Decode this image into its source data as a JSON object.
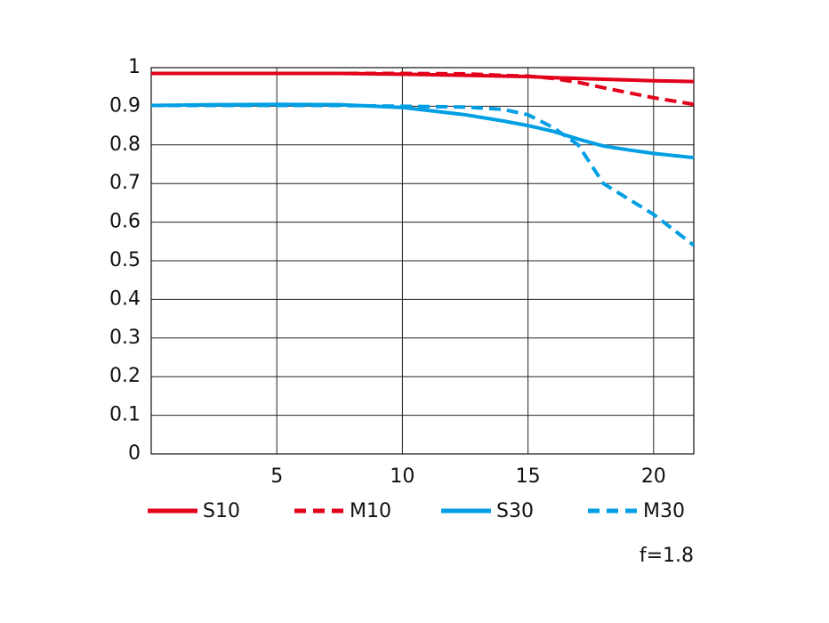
{
  "chart_data": {
    "type": "line",
    "x": [
      0,
      2.5,
      5,
      7.5,
      10,
      12.5,
      14,
      15,
      16,
      17,
      18,
      19,
      20,
      21.6
    ],
    "series": [
      {
        "name": "S10",
        "color": "#e2001a",
        "dashed": false,
        "values": [
          0.985,
          0.985,
          0.985,
          0.985,
          0.983,
          0.98,
          0.978,
          0.977,
          0.974,
          0.972,
          0.97,
          0.968,
          0.966,
          0.964
        ]
      },
      {
        "name": "M10",
        "color": "#e2001a",
        "dashed": true,
        "values": [
          0.985,
          0.985,
          0.985,
          0.985,
          0.985,
          0.984,
          0.98,
          0.978,
          0.972,
          0.962,
          0.948,
          0.935,
          0.922,
          0.905
        ]
      },
      {
        "name": "S30",
        "color": "#009fe3",
        "dashed": false,
        "values": [
          0.902,
          0.904,
          0.905,
          0.904,
          0.897,
          0.878,
          0.862,
          0.85,
          0.835,
          0.815,
          0.797,
          0.787,
          0.778,
          0.767
        ]
      },
      {
        "name": "M30",
        "color": "#009fe3",
        "dashed": true,
        "values": [
          0.902,
          0.902,
          0.902,
          0.902,
          0.9,
          0.898,
          0.892,
          0.878,
          0.845,
          0.8,
          0.7,
          0.66,
          0.62,
          0.54
        ]
      }
    ],
    "xlim": [
      0,
      21.6
    ],
    "xticks": [
      5,
      10,
      15,
      20
    ],
    "ylim": [
      0,
      1
    ],
    "yticks": [
      0,
      0.1,
      0.2,
      0.3,
      0.4,
      0.5,
      0.6,
      0.7,
      0.8,
      0.9,
      1
    ],
    "grid": true,
    "note": "f=1.8"
  }
}
